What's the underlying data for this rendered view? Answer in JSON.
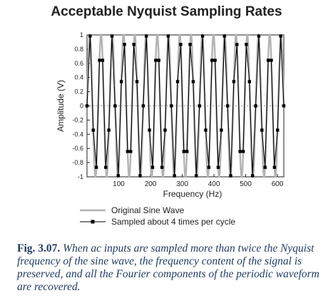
{
  "chart_data": {
    "type": "line",
    "title": "Acceptable Nyquist Sampling Rates",
    "xlabel": "Frequency (Hz)",
    "ylabel": "Amplitude (V)",
    "xlim": [
      0,
      620
    ],
    "ylim": [
      -1,
      1
    ],
    "x_ticks": [
      "100",
      "200",
      "300",
      "400",
      "500",
      "600"
    ],
    "y_ticks": [
      "1",
      "0.8",
      "0.6",
      "0.4",
      "0.2",
      "0",
      "-0.2",
      "-0.4",
      "-0.6",
      "-0.8",
      "-1"
    ],
    "zero_line": true,
    "legend_position": "bottom",
    "series": [
      {
        "name": "Original Sine Wave",
        "color": "#b3b3b3",
        "cycles": 17.5,
        "samples_per_cycle": 3.6,
        "style": "line"
      },
      {
        "name": "Sampled about 4 times per cycle",
        "color": "#000000",
        "style": "line-square-markers"
      }
    ]
  },
  "caption": {
    "label": "Fig. 3.07.",
    "text": "When ac inputs are sampled more than twice the Nyquist frequency of the sine wave, the frequency content of the signal is preserved, and all the Fourier components of the periodic waveform are recovered."
  }
}
